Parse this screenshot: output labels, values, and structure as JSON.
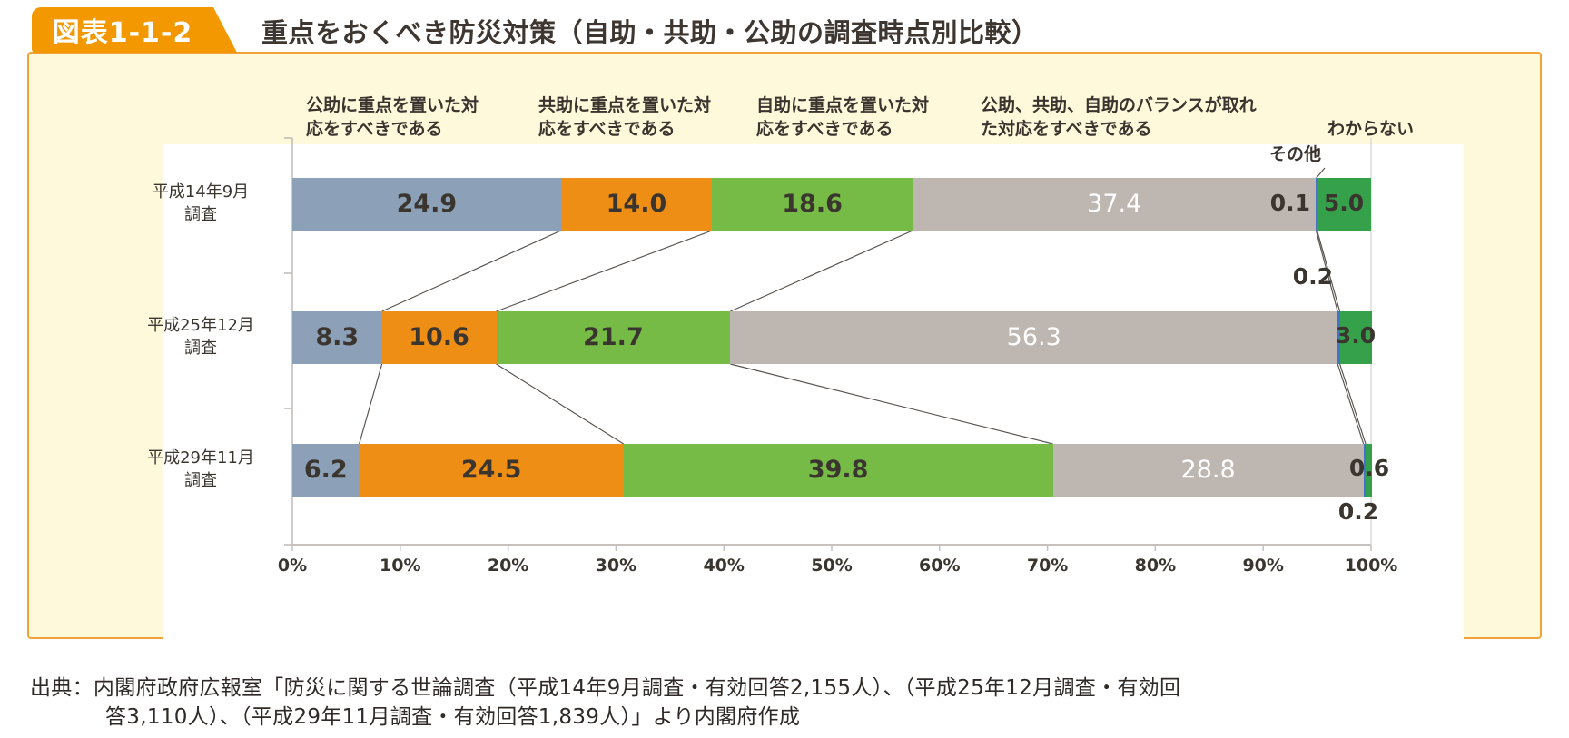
{
  "figure": {
    "badge": "図表1-1-2",
    "title": "重点をおくべき防災対策（自助・共助・公助の調査時点別比較）"
  },
  "source": {
    "line1": "出典：内閣府政府広報室「防災に関する世論調査（平成14年9月調査・有効回答2,155人）、（平成25年12月調査・有効回",
    "line2": "答3,110人）、（平成29年11月調査・有効回答1,839人）」より内閣府作成"
  },
  "chart_data": {
    "type": "bar",
    "stacked": true,
    "orientation": "horizontal",
    "xlim": [
      0,
      100
    ],
    "x_ticks": [
      "0%",
      "10%",
      "20%",
      "30%",
      "40%",
      "50%",
      "60%",
      "70%",
      "80%",
      "90%",
      "100%"
    ],
    "legend_position": "top-headers",
    "grid": false,
    "series": [
      {
        "name": "公助に重点を置いた対応をすべきである",
        "header": "公助に重点を置いた対\n応をすべきである",
        "color": "#8ca1b7"
      },
      {
        "name": "共助に重点を置いた対応をすべきである",
        "header": "共助に重点を置いた対\n応をすべきである",
        "color": "#ef8e15"
      },
      {
        "name": "自助に重点を置いた対応をすべきである",
        "header": "自助に重点を置いた対\n応をすべきである",
        "color": "#76bb45"
      },
      {
        "name": "公助、共助、自助のバランスが取れた対応をすべきである",
        "header": "公助、共助、自助のバランスが取れ\nた対応をすべきである",
        "color": "#bdb6b1"
      },
      {
        "name": "その他",
        "header": "その他",
        "color": "#4472c4"
      },
      {
        "name": "わからない",
        "header": "わからない",
        "color": "#35a14b"
      }
    ],
    "rows": [
      {
        "label": "平成14年9月\n調査",
        "values": [
          24.9,
          14.0,
          18.6,
          37.4,
          0.1,
          5.0
        ],
        "value_labels": [
          "24.9",
          "14.0",
          "18.6",
          "37.4",
          "0.1",
          "5.0"
        ]
      },
      {
        "label": "平成25年12月\n調査",
        "values": [
          8.3,
          10.6,
          21.7,
          56.3,
          0.2,
          3.0
        ],
        "value_labels": [
          "8.3",
          "10.6",
          "21.7",
          "56.3",
          "0.2",
          "3.0"
        ]
      },
      {
        "label": "平成29年11月\n調査",
        "values": [
          6.2,
          24.5,
          39.8,
          28.8,
          0.2,
          0.6
        ],
        "value_labels": [
          "6.2",
          "24.5",
          "39.8",
          "28.8",
          "0.2",
          "0.6"
        ]
      }
    ]
  }
}
